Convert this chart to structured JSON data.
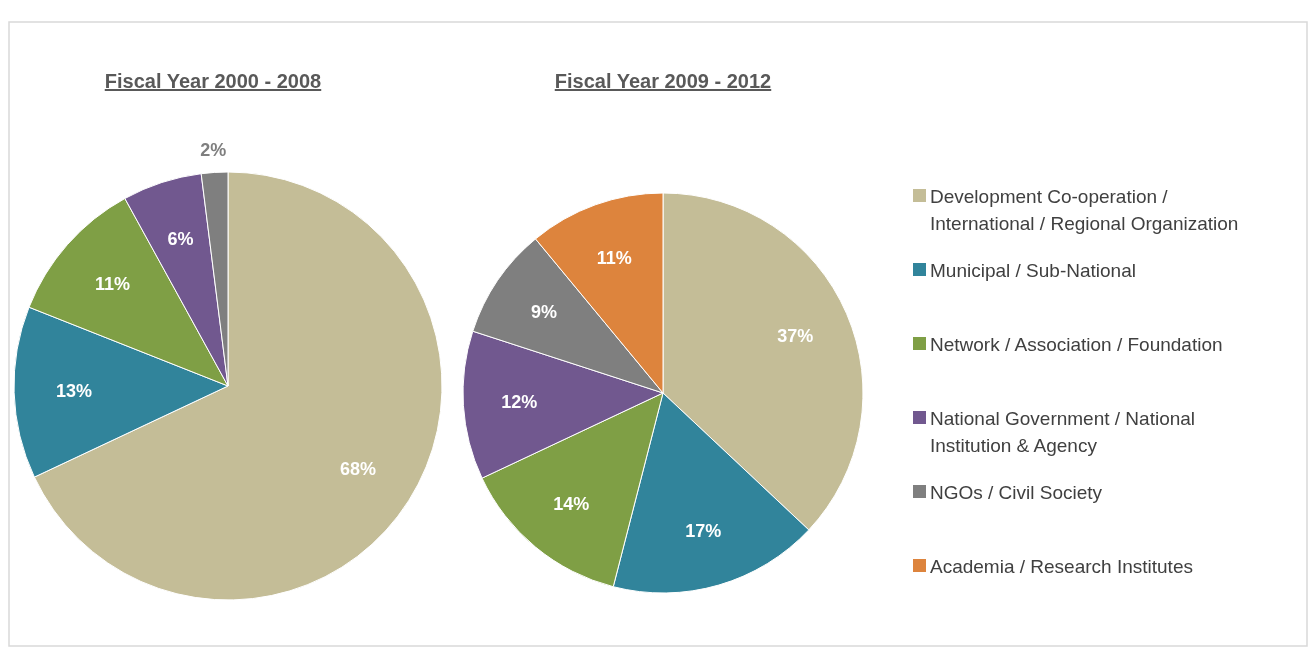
{
  "chart_data": [
    {
      "type": "pie",
      "title": "Fiscal Year 2000 - 2008",
      "categories": [
        null,
        null,
        null,
        null,
        null
      ],
      "values": [
        68,
        13,
        11,
        6,
        2
      ],
      "colors": [
        "#c4bd97",
        "#31849b",
        "#7f9f45",
        "#71588f",
        "#7f7f7f"
      ],
      "value_labels": [
        "68%",
        "13%",
        "11%",
        "6%",
        "2%"
      ],
      "legend": false
    },
    {
      "type": "pie",
      "title": "Fiscal Year 2009 - 2012",
      "categories": [
        "Development Co-operation / International / Regional Organization",
        "Municipal / Sub-National",
        "Network / Association / Foundation",
        "National Government / National Institution & Agency",
        "NGOs / Civil Society",
        "Academia / Research Institutes"
      ],
      "values": [
        37,
        17,
        14,
        12,
        9,
        11
      ],
      "colors": [
        "#c4bd97",
        "#31849b",
        "#7f9f45",
        "#71588f",
        "#7f7f7f",
        "#dd843d"
      ],
      "value_labels": [
        "37%",
        "17%",
        "14%",
        "12%",
        "9%",
        "11%"
      ],
      "legend": "right"
    }
  ]
}
